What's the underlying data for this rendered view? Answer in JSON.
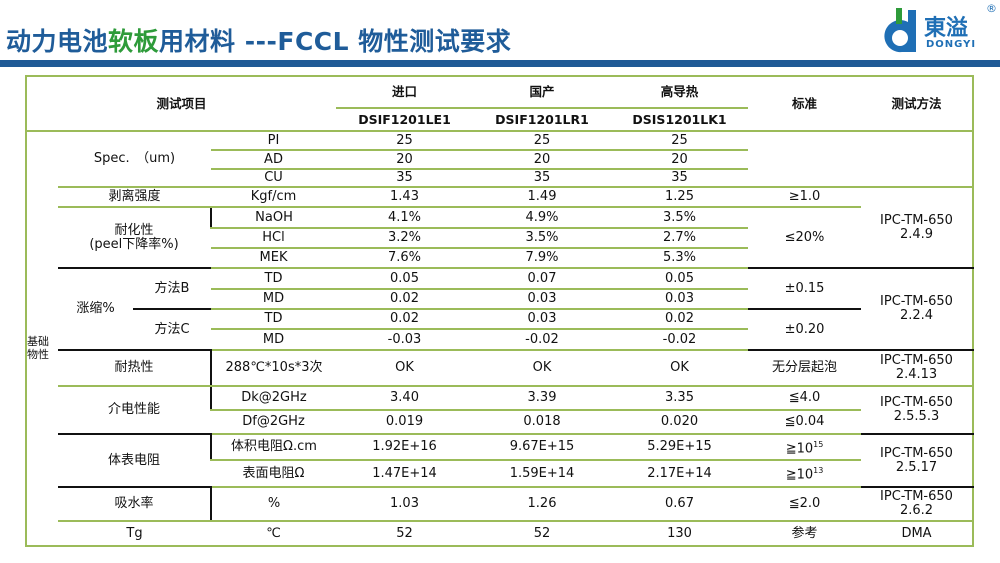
{
  "title": {
    "part1": "动力电池",
    "highlight": "软板",
    "part2": "用材料 ---FCCL 物性测试要求"
  },
  "logo": {
    "cn": "東溢",
    "en": "DONGYI",
    "reg": "®"
  },
  "colors": {
    "title_blue": "#1f5c99",
    "highlight_green": "#2e9b3a",
    "bar": "#1f5a96",
    "grid": "#9bbb59"
  },
  "header": {
    "item": "测试项目",
    "groups": [
      "进口",
      "国产",
      "高导热"
    ],
    "models": [
      "DSIF1201LE1",
      "DSIF1201LR1",
      "DSIS1201LK1"
    ],
    "standard": "标准",
    "method": "测试方法"
  },
  "group_label": "基础物性",
  "rows": {
    "spec": {
      "label": "Spec.　（um)",
      "params": [
        "PI",
        "AD",
        "CU"
      ],
      "values": [
        [
          "25",
          "25",
          "25"
        ],
        [
          "20",
          "20",
          "20"
        ],
        [
          "35",
          "35",
          "35"
        ]
      ]
    },
    "peel": {
      "label": "剥离强度",
      "param": "Kgf/cm",
      "values": [
        "1.43",
        "1.49",
        "1.25"
      ],
      "standard": "≥1.0",
      "method": "IPC-TM-650\n2.4.9",
      "method_l1": "IPC-TM-650",
      "method_l2": "2.4.9"
    },
    "chem": {
      "label_l1": "耐化性",
      "label_l2": "(peel下降率%)",
      "params": [
        "NaOH",
        "HCl",
        "MEK"
      ],
      "values": [
        [
          "4.1%",
          "4.9%",
          "3.5%"
        ],
        [
          "3.2%",
          "3.5%",
          "2.7%"
        ],
        [
          "7.6%",
          "7.9%",
          "5.3%"
        ]
      ],
      "standard": "≤20%"
    },
    "shrink": {
      "label": "涨缩%",
      "methodB": "方法B",
      "methodC": "方法C",
      "params": [
        "TD",
        "MD",
        "TD",
        "MD"
      ],
      "values": [
        [
          "0.05",
          "0.07",
          "0.05"
        ],
        [
          "0.02",
          "0.03",
          "0.03"
        ],
        [
          "0.02",
          "0.03",
          "0.02"
        ],
        [
          "-0.03",
          "-0.02",
          "-0.02"
        ]
      ],
      "standardB": "±0.15",
      "standardC": "±0.20",
      "method_l1": "IPC-TM-650",
      "method_l2": "2.2.4"
    },
    "heat": {
      "label": "耐热性",
      "param": "288℃*10s*3次",
      "values": [
        "OK",
        "OK",
        "OK"
      ],
      "standard": "无分层起泡",
      "method_l1": "IPC-TM-650",
      "method_l2": "2.4.13"
    },
    "dielectric": {
      "label": "介电性能",
      "params": [
        "Dk@2GHz",
        "Df@2GHz"
      ],
      "values": [
        [
          "3.40",
          "3.39",
          "3.35"
        ],
        [
          "0.019",
          "0.018",
          "0.020"
        ]
      ],
      "standards": [
        "≦4.0",
        "≦0.04"
      ],
      "method_l1": "IPC-TM-650",
      "method_l2": "2.5.5.3"
    },
    "resistance": {
      "label": "体表电阻",
      "params": [
        "体积电阻Ω.cm",
        "表面电阻Ω"
      ],
      "values": [
        [
          "1.92E+16",
          "9.67E+15",
          "5.29E+15"
        ],
        [
          "1.47E+14",
          "1.59E+14",
          "2.17E+14"
        ]
      ],
      "standards": [
        {
          "base": "≧10",
          "exp": "15"
        },
        {
          "base": "≧10",
          "exp": "13"
        }
      ],
      "method_l1": "IPC-TM-650",
      "method_l2": "2.5.17"
    },
    "water": {
      "label": "吸水率",
      "param": "%",
      "values": [
        "1.03",
        "1.26",
        "0.67"
      ],
      "standard": "≦2.0",
      "method_l1": "IPC-TM-650",
      "method_l2": "2.6.2"
    },
    "tg": {
      "label": "Tg",
      "param": "℃",
      "values": [
        "52",
        "52",
        "130"
      ],
      "standard": "参考",
      "method": "DMA"
    }
  }
}
